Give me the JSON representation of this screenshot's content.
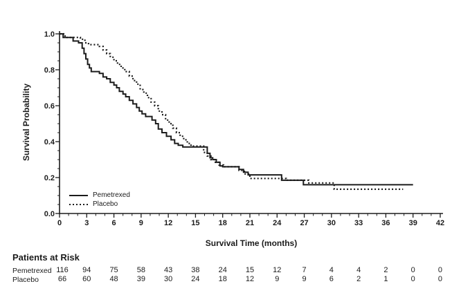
{
  "figure": {
    "y_axis": {
      "title": "Survival Probability"
    },
    "x_axis": {
      "title": "Survival Time (months)"
    },
    "legend": [
      {
        "label": "Pemetrexed",
        "style": "solid"
      },
      {
        "label": "Placebo",
        "style": "dotted"
      }
    ]
  },
  "chart_data": {
    "type": "line",
    "subtype": "kaplan_meier_step",
    "title": "",
    "xlabel": "Survival Time (months)",
    "ylabel": "Survival Probability",
    "xlim": [
      0,
      42
    ],
    "ylim": [
      0.0,
      1.0
    ],
    "x_ticks": [
      0,
      3,
      6,
      9,
      12,
      15,
      18,
      21,
      24,
      27,
      30,
      33,
      36,
      39,
      42
    ],
    "y_ticks": [
      0.0,
      0.2,
      0.4,
      0.6,
      0.8,
      1.0
    ],
    "grid": false,
    "legend_position": "lower-left",
    "series": [
      {
        "name": "Pemetrexed",
        "line_style": "solid",
        "color": "#1b1b1b",
        "points": [
          [
            0,
            1.0
          ],
          [
            0.4,
            0.98
          ],
          [
            1.5,
            0.96
          ],
          [
            2.1,
            0.95
          ],
          [
            2.5,
            0.92
          ],
          [
            2.7,
            0.89
          ],
          [
            2.9,
            0.86
          ],
          [
            3.1,
            0.83
          ],
          [
            3.3,
            0.81
          ],
          [
            3.5,
            0.79
          ],
          [
            4.4,
            0.78
          ],
          [
            4.8,
            0.76
          ],
          [
            5.2,
            0.75
          ],
          [
            5.6,
            0.73
          ],
          [
            6.0,
            0.715
          ],
          [
            6.3,
            0.7
          ],
          [
            6.6,
            0.68
          ],
          [
            7.0,
            0.665
          ],
          [
            7.3,
            0.65
          ],
          [
            7.7,
            0.63
          ],
          [
            8.1,
            0.61
          ],
          [
            8.5,
            0.59
          ],
          [
            8.8,
            0.57
          ],
          [
            9.1,
            0.555
          ],
          [
            9.5,
            0.54
          ],
          [
            10.2,
            0.52
          ],
          [
            10.6,
            0.5
          ],
          [
            10.9,
            0.47
          ],
          [
            11.3,
            0.45
          ],
          [
            11.8,
            0.43
          ],
          [
            12.3,
            0.41
          ],
          [
            12.7,
            0.39
          ],
          [
            13.1,
            0.38
          ],
          [
            13.6,
            0.37
          ],
          [
            16.3,
            0.335
          ],
          [
            16.6,
            0.31
          ],
          [
            16.9,
            0.3
          ],
          [
            17.3,
            0.285
          ],
          [
            17.7,
            0.265
          ],
          [
            18.0,
            0.26
          ],
          [
            19.8,
            0.245
          ],
          [
            20.3,
            0.23
          ],
          [
            20.8,
            0.215
          ],
          [
            24.5,
            0.185
          ],
          [
            26.9,
            0.16
          ],
          [
            39.0,
            0.16
          ]
        ]
      },
      {
        "name": "Placebo",
        "line_style": "dotted",
        "color": "#1b1b1b",
        "points": [
          [
            0,
            1.0
          ],
          [
            0.6,
            0.98
          ],
          [
            2.3,
            0.97
          ],
          [
            2.8,
            0.95
          ],
          [
            3.2,
            0.94
          ],
          [
            4.4,
            0.93
          ],
          [
            4.8,
            0.91
          ],
          [
            5.2,
            0.89
          ],
          [
            5.6,
            0.87
          ],
          [
            6.0,
            0.85
          ],
          [
            6.4,
            0.83
          ],
          [
            6.8,
            0.81
          ],
          [
            7.2,
            0.79
          ],
          [
            7.7,
            0.765
          ],
          [
            8.1,
            0.74
          ],
          [
            8.5,
            0.72
          ],
          [
            8.9,
            0.69
          ],
          [
            9.3,
            0.67
          ],
          [
            9.7,
            0.645
          ],
          [
            10.1,
            0.62
          ],
          [
            10.5,
            0.6
          ],
          [
            10.9,
            0.57
          ],
          [
            11.3,
            0.55
          ],
          [
            11.7,
            0.52
          ],
          [
            12.1,
            0.5
          ],
          [
            12.5,
            0.475
          ],
          [
            12.9,
            0.45
          ],
          [
            13.3,
            0.43
          ],
          [
            13.7,
            0.41
          ],
          [
            14.1,
            0.39
          ],
          [
            14.5,
            0.375
          ],
          [
            15.9,
            0.34
          ],
          [
            16.3,
            0.32
          ],
          [
            16.7,
            0.3
          ],
          [
            17.1,
            0.285
          ],
          [
            17.6,
            0.27
          ],
          [
            18.1,
            0.26
          ],
          [
            19.8,
            0.24
          ],
          [
            20.4,
            0.22
          ],
          [
            21.0,
            0.195
          ],
          [
            25.0,
            0.185
          ],
          [
            27.5,
            0.17
          ],
          [
            30.3,
            0.135
          ],
          [
            37.9,
            0.135
          ]
        ]
      }
    ]
  },
  "at_risk_table": {
    "header": "Patients at Risk",
    "months": [
      0,
      3,
      6,
      9,
      12,
      15,
      18,
      21,
      24,
      27,
      30,
      33,
      36,
      39,
      42
    ],
    "rows": [
      {
        "label": "Pemetrexed",
        "counts": [
          "116",
          "94",
          "75",
          "58",
          "43",
          "38",
          "24",
          "15",
          "12",
          "7",
          "4",
          "4",
          "2",
          "0",
          "0"
        ]
      },
      {
        "label": "Placebo",
        "counts": [
          "66",
          "60",
          "48",
          "39",
          "30",
          "24",
          "18",
          "12",
          "9",
          "9",
          "6",
          "2",
          "1",
          "0",
          "0"
        ]
      }
    ]
  },
  "colors": {
    "ink": "#1b1b1b",
    "background": "#ffffff"
  }
}
